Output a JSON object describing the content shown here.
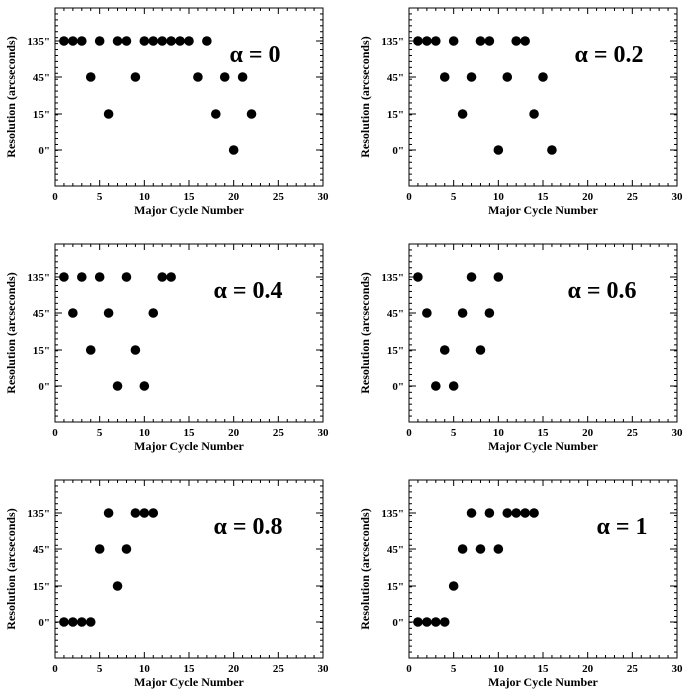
{
  "figure": {
    "xlabel": "Major Cycle Number",
    "ylabel": "Resolution (arcseconds)",
    "marker_color": "#000000"
  },
  "chart_data": [
    {
      "type": "scatter",
      "title": "α = 0",
      "xlabel": "Major Cycle Number",
      "ylabel": "Resolution (arcseconds)",
      "xlim": [
        0,
        30
      ],
      "xticks": [
        "0",
        "5",
        "10",
        "15",
        "20",
        "25",
        "30"
      ],
      "ycategories": [
        "0\"",
        "15\"",
        "45\"",
        "135\""
      ],
      "x": [
        1,
        2,
        3,
        4,
        5,
        6,
        7,
        8,
        9,
        10,
        11,
        12,
        13,
        14,
        15,
        16,
        17,
        18,
        19,
        20,
        21,
        22
      ],
      "y": [
        "135\"",
        "135\"",
        "135\"",
        "45\"",
        "135\"",
        "15\"",
        "135\"",
        "135\"",
        "45\"",
        "135\"",
        "135\"",
        "135\"",
        "135\"",
        "135\"",
        "135\"",
        "45\"",
        "135\"",
        "15\"",
        "45\"",
        "0\"",
        "45\"",
        "15\""
      ]
    },
    {
      "type": "scatter",
      "title": "α = 0.2",
      "xlabel": "Major Cycle Number",
      "ylabel": "Resolution (arcseconds)",
      "xlim": [
        0,
        30
      ],
      "xticks": [
        "0",
        "5",
        "10",
        "15",
        "20",
        "25",
        "30"
      ],
      "ycategories": [
        "0\"",
        "15\"",
        "45\"",
        "135\""
      ],
      "x": [
        1,
        2,
        3,
        4,
        5,
        6,
        7,
        8,
        9,
        10,
        11,
        12,
        13,
        14,
        15,
        16
      ],
      "y": [
        "135\"",
        "135\"",
        "135\"",
        "45\"",
        "135\"",
        "15\"",
        "45\"",
        "135\"",
        "135\"",
        "0\"",
        "45\"",
        "135\"",
        "135\"",
        "15\"",
        "45\"",
        "0\""
      ]
    },
    {
      "type": "scatter",
      "title": "α = 0.4",
      "xlabel": "Major Cycle Number",
      "ylabel": "Resolution (arcseconds)",
      "xlim": [
        0,
        30
      ],
      "xticks": [
        "0",
        "5",
        "10",
        "15",
        "20",
        "25",
        "30"
      ],
      "ycategories": [
        "0\"",
        "15\"",
        "45\"",
        "135\""
      ],
      "x": [
        1,
        2,
        3,
        4,
        5,
        6,
        7,
        8,
        9,
        10,
        11,
        12,
        13
      ],
      "y": [
        "135\"",
        "45\"",
        "135\"",
        "15\"",
        "135\"",
        "45\"",
        "0\"",
        "135\"",
        "15\"",
        "0\"",
        "45\"",
        "135\"",
        "135\""
      ]
    },
    {
      "type": "scatter",
      "title": "α = 0.6",
      "xlabel": "Major Cycle Number",
      "ylabel": "Resolution (arcseconds)",
      "xlim": [
        0,
        30
      ],
      "xticks": [
        "0",
        "5",
        "10",
        "15",
        "20",
        "25",
        "30"
      ],
      "ycategories": [
        "0\"",
        "15\"",
        "45\"",
        "135\""
      ],
      "x": [
        1,
        2,
        3,
        4,
        5,
        6,
        7,
        8,
        9,
        10
      ],
      "y": [
        "135\"",
        "45\"",
        "0\"",
        "15\"",
        "0\"",
        "45\"",
        "135\"",
        "15\"",
        "45\"",
        "135\""
      ]
    },
    {
      "type": "scatter",
      "title": "α = 0.8",
      "xlabel": "Major Cycle Number",
      "ylabel": "Resolution (arcseconds)",
      "xlim": [
        0,
        30
      ],
      "xticks": [
        "0",
        "5",
        "10",
        "15",
        "20",
        "25",
        "30"
      ],
      "ycategories": [
        "0\"",
        "15\"",
        "45\"",
        "135\""
      ],
      "x": [
        1,
        2,
        3,
        4,
        5,
        6,
        7,
        8,
        9,
        10,
        11
      ],
      "y": [
        "0\"",
        "0\"",
        "0\"",
        "0\"",
        "45\"",
        "135\"",
        "15\"",
        "45\"",
        "135\"",
        "135\"",
        "135\""
      ]
    },
    {
      "type": "scatter",
      "title": "α = 1",
      "xlabel": "Major Cycle Number",
      "ylabel": "Resolution (arcseconds)",
      "xlim": [
        0,
        30
      ],
      "xticks": [
        "0",
        "5",
        "10",
        "15",
        "20",
        "25",
        "30"
      ],
      "ycategories": [
        "0\"",
        "15\"",
        "45\"",
        "135\""
      ],
      "x": [
        1,
        2,
        3,
        4,
        5,
        6,
        7,
        8,
        9,
        10,
        11,
        12,
        13,
        14
      ],
      "y": [
        "0\"",
        "0\"",
        "0\"",
        "0\"",
        "15\"",
        "45\"",
        "135\"",
        "45\"",
        "135\"",
        "45\"",
        "135\"",
        "135\"",
        "135\"",
        "135\""
      ]
    }
  ]
}
